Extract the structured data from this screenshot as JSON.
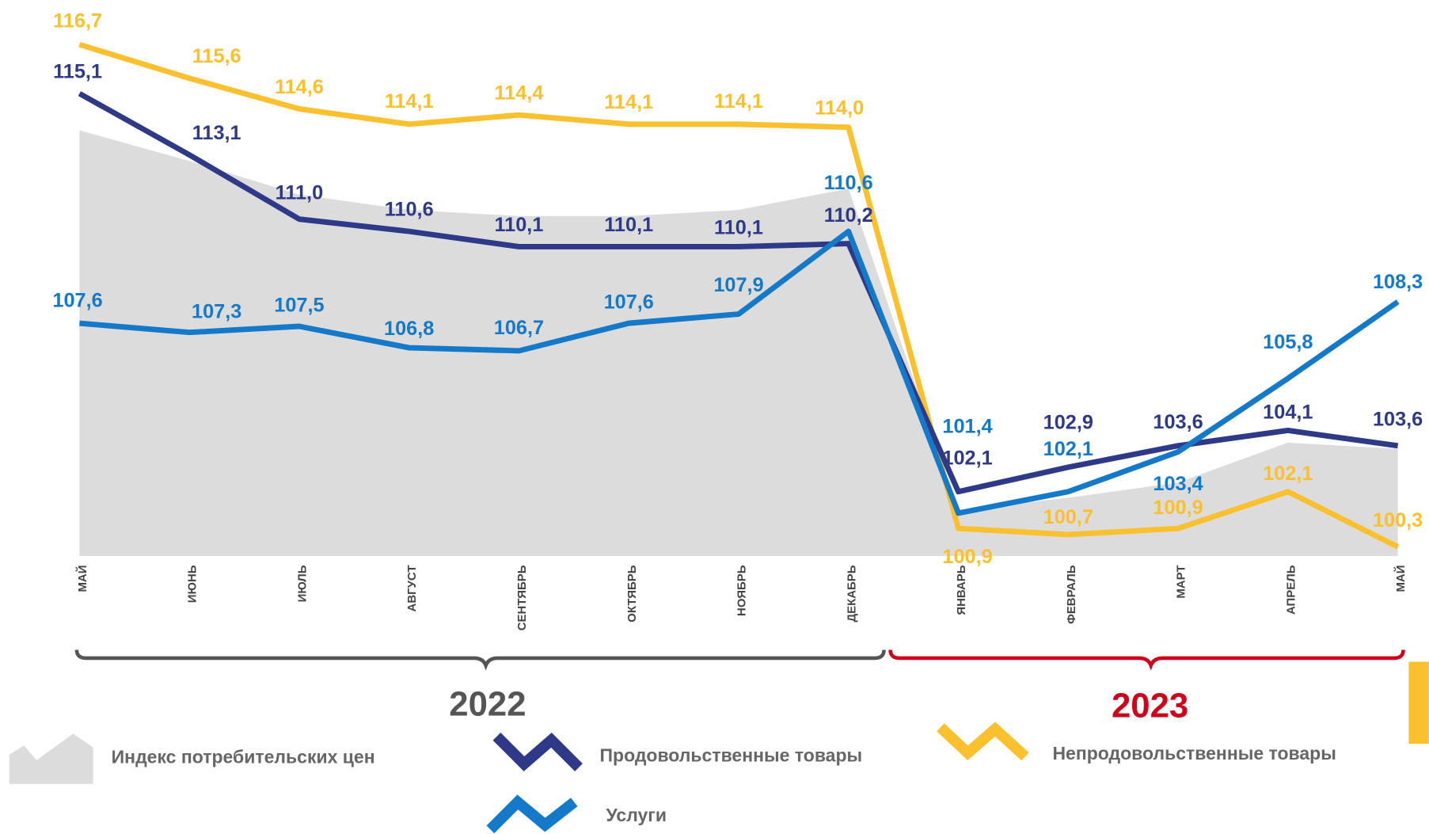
{
  "chart_data": {
    "type": "line",
    "categories": [
      "МАЙ",
      "ИЮНЬ",
      "ИЮЛЬ",
      "АВГУСТ",
      "СЕНТЯБРЬ",
      "ОКТЯБРЬ",
      "НОЯБРЬ",
      "ДЕКАБРЬ",
      "ЯНВАРЬ",
      "ФЕВРАЛЬ",
      "МАРТ",
      "АПРЕЛЬ",
      "МАЙ"
    ],
    "ylim": [
      100,
      118
    ],
    "annotations": [
      "2022",
      "2023"
    ],
    "area": {
      "name": "Индекс потребительских цен",
      "color": "#dcdcdc",
      "values": [
        113.9,
        112.9,
        111.8,
        111.3,
        111.1,
        111.1,
        111.3,
        112.0,
        101.5,
        101.9,
        102.4,
        103.7,
        103.5
      ]
    },
    "series": [
      {
        "name": "Продовольственные товары",
        "color": "#2e3a87",
        "values": [
          115.1,
          113.1,
          111.0,
          110.6,
          110.1,
          110.1,
          110.1,
          110.2,
          102.1,
          102.9,
          103.6,
          104.1,
          103.6
        ],
        "value_labels": [
          "115,1",
          "113,1",
          "111,0",
          "110,6",
          "110,1",
          "110,1",
          "110,1",
          "110,2",
          "102,1",
          "102,9",
          "103,6",
          "104,1",
          "103,6"
        ]
      },
      {
        "name": "Непродовольственные товары",
        "color": "#fbc02d",
        "values": [
          116.7,
          115.6,
          114.6,
          114.1,
          114.4,
          114.1,
          114.1,
          114.0,
          100.9,
          100.7,
          100.9,
          102.1,
          100.3
        ],
        "value_labels": [
          "116,7",
          "115,6",
          "114,6",
          "114,1",
          "114,4",
          "114,1",
          "114,1",
          "114,0",
          "100,9",
          "100,7",
          "100,9",
          "102,1",
          "100,3"
        ]
      },
      {
        "name": "Услуги",
        "color": "#1479c9",
        "values": [
          107.6,
          107.3,
          107.5,
          106.8,
          106.7,
          107.6,
          107.9,
          110.6,
          101.4,
          102.1,
          103.4,
          105.8,
          108.3
        ],
        "value_labels": [
          "107,6",
          "107,3",
          "107,5",
          "106,8",
          "106,7",
          "107,6",
          "107,9",
          "110,6",
          "101,4",
          "102,1",
          "103,4",
          "105,8",
          "108,3"
        ]
      }
    ]
  }
}
